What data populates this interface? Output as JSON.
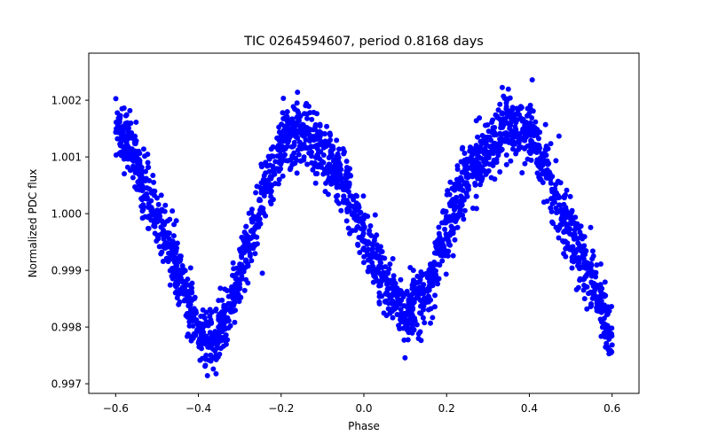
{
  "chart_data": {
    "type": "scatter",
    "title": "TIC 0264594607, period 0.8168 days",
    "xlabel": "Phase",
    "ylabel": "Normalized PDC flux",
    "xlim": [
      -0.665,
      0.665
    ],
    "ylim": [
      0.99683,
      1.00283
    ],
    "xticks": [
      -0.6,
      -0.4,
      -0.2,
      0.0,
      0.2,
      0.4,
      0.6
    ],
    "xtick_labels": [
      "−0.6",
      "−0.4",
      "−0.2",
      "0.0",
      "0.2",
      "0.4",
      "0.6"
    ],
    "yticks": [
      0.997,
      0.998,
      0.999,
      1.0,
      1.001,
      1.002
    ],
    "ytick_labels": [
      "0.997",
      "0.998",
      "0.999",
      "1.000",
      "1.001",
      "1.002"
    ],
    "grid": false,
    "marker_color": "#0000ff",
    "series": [
      {
        "name": "PDC flux",
        "model": "flux = 1.00000 + 0.00151*cos(2*pi*(phase+0.16)/0.5) + 0.00018*sin(2*pi*(phase+0.16)) - 0.00012",
        "phase_range": [
          -0.6,
          0.6
        ],
        "n_points": 2400,
        "scatter_sigma": 0.00028,
        "x": [
          -0.6,
          -0.55,
          -0.5,
          -0.45,
          -0.4,
          -0.375,
          -0.35,
          -0.3,
          -0.25,
          -0.2,
          -0.15,
          -0.1,
          -0.05,
          0.0,
          0.05,
          0.1,
          0.15,
          0.2,
          0.25,
          0.3,
          0.35,
          0.4,
          0.45,
          0.5,
          0.55,
          0.6
        ],
        "y": [
          1.0016,
          1.0009,
          0.9999,
          0.999,
          0.998,
          0.9976,
          0.9979,
          0.9989,
          1.0002,
          1.0012,
          1.0015,
          1.0011,
          1.0006,
          0.9997,
          0.9988,
          0.9982,
          0.9986,
          0.9997,
          1.0007,
          1.0012,
          1.0015,
          1.0014,
          1.0006,
          0.9996,
          0.9988,
          0.9978
        ]
      }
    ]
  }
}
